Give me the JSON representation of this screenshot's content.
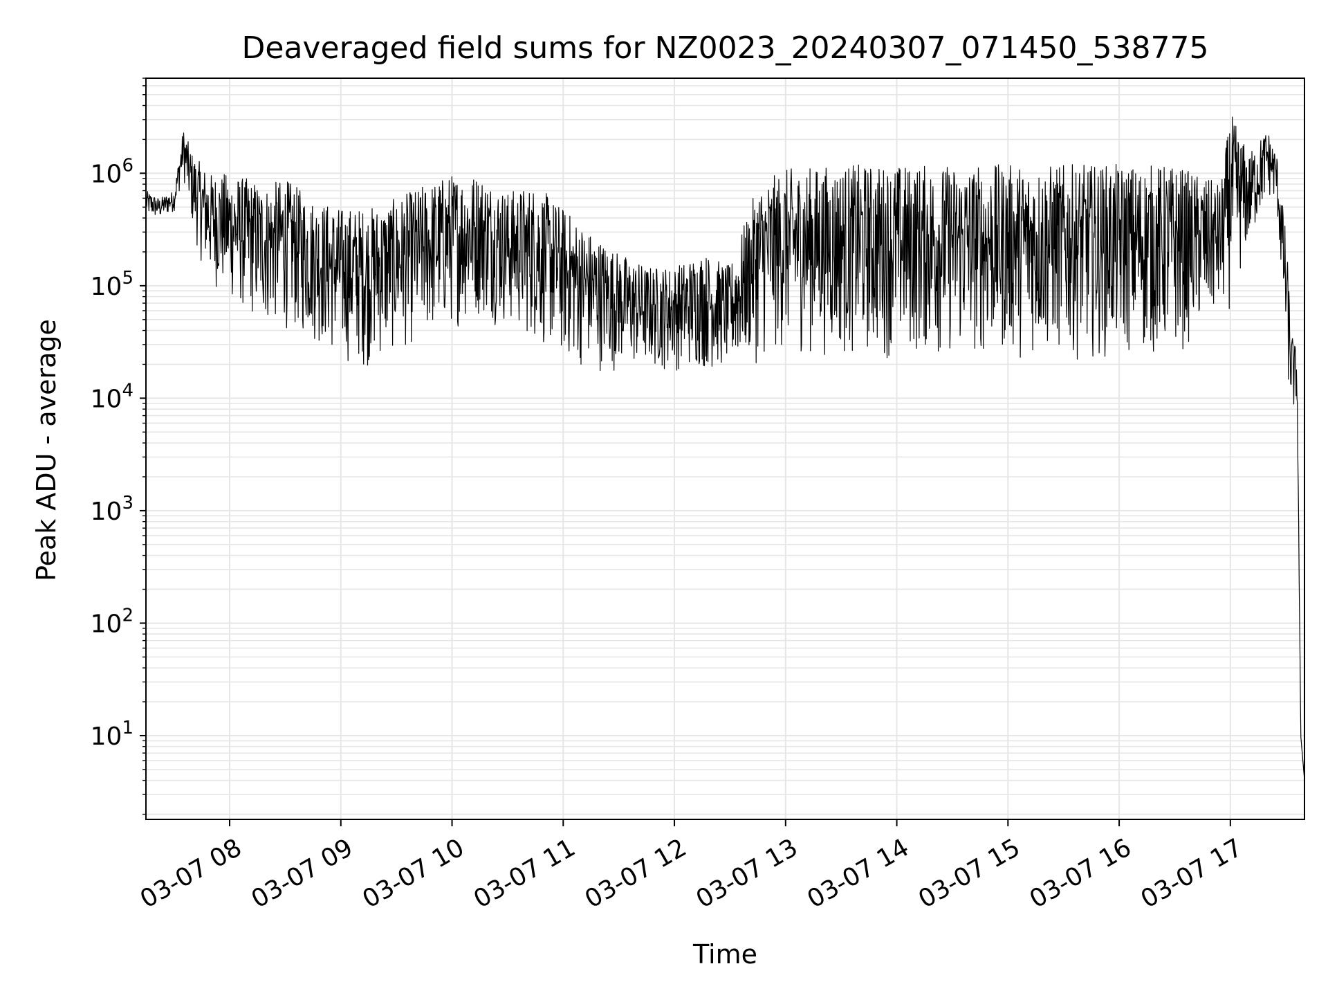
{
  "chart_data": {
    "type": "line",
    "title": "Deaveraged field sums for NZ0023_20240307_071450_538775",
    "xlabel": "Time",
    "ylabel": "Peak ADU - average",
    "yscale": "log",
    "ylim": [
      1.8,
      7000000
    ],
    "xlim": [
      "2024-03-07 07:14:50",
      "2024-03-07 17:40:00"
    ],
    "grid": true,
    "x_tick_labels": [
      "03-07 08",
      "03-07 09",
      "03-07 10",
      "03-07 11",
      "03-07 12",
      "03-07 13",
      "03-07 14",
      "03-07 15",
      "03-07 16",
      "03-07 17"
    ],
    "y_tick_labels": [
      {
        "base": "10",
        "exp": "1"
      },
      {
        "base": "10",
        "exp": "2"
      },
      {
        "base": "10",
        "exp": "3"
      },
      {
        "base": "10",
        "exp": "4"
      },
      {
        "base": "10",
        "exp": "5"
      },
      {
        "base": "10",
        "exp": "6"
      }
    ],
    "line_color": "#000000",
    "grid_color": "#e6e6e6",
    "series": [
      {
        "x": [
          "2024-03-07 07:15",
          "2024-03-07 07:22",
          "2024-03-07 07:30",
          "2024-03-07 07:35",
          "2024-03-07 07:40",
          "2024-03-07 07:45",
          "2024-03-07 07:50",
          "2024-03-07 08:00",
          "2024-03-07 08:10",
          "2024-03-07 08:20",
          "2024-03-07 08:30",
          "2024-03-07 08:45",
          "2024-03-07 09:00",
          "2024-03-07 09:15",
          "2024-03-07 09:30",
          "2024-03-07 09:45",
          "2024-03-07 10:00",
          "2024-03-07 10:15",
          "2024-03-07 10:30",
          "2024-03-07 10:45",
          "2024-03-07 11:00",
          "2024-03-07 11:15",
          "2024-03-07 11:30",
          "2024-03-07 11:45",
          "2024-03-07 12:00",
          "2024-03-07 12:15",
          "2024-03-07 12:30",
          "2024-03-07 12:45",
          "2024-03-07 13:00",
          "2024-03-07 13:30",
          "2024-03-07 14:00",
          "2024-03-07 14:30",
          "2024-03-07 15:00",
          "2024-03-07 15:30",
          "2024-03-07 16:00",
          "2024-03-07 16:30",
          "2024-03-07 16:55",
          "2024-03-07 17:00",
          "2024-03-07 17:10",
          "2024-03-07 17:20",
          "2024-03-07 17:25",
          "2024-03-07 17:30",
          "2024-03-07 17:33",
          "2024-03-07 17:36",
          "2024-03-07 17:38",
          "2024-03-07 17:40"
        ],
        "values": [
          500000,
          450000,
          550000,
          1200000,
          700000,
          500000,
          400000,
          250000,
          200000,
          150000,
          180000,
          100000,
          60000,
          40000,
          80000,
          120000,
          150000,
          200000,
          160000,
          100000,
          50000,
          30000,
          25000,
          25000,
          25000,
          25000,
          25000,
          30000,
          400000,
          300000,
          350000,
          300000,
          300000,
          300000,
          300000,
          300000,
          200000,
          250000,
          500000,
          1000000,
          800000,
          100000,
          20000,
          15000,
          10,
          4
        ],
        "band_low": [
          400000,
          380000,
          450000,
          900000,
          300000,
          150000,
          100000,
          70000,
          50000,
          40000,
          40000,
          30000,
          20000,
          18000,
          25000,
          30000,
          40000,
          50000,
          40000,
          30000,
          20000,
          17000,
          17000,
          17000,
          17000,
          17000,
          17000,
          20000,
          25000,
          22000,
          22000,
          22000,
          22000,
          22000,
          22000,
          22000,
          50000,
          60000,
          200000,
          600000,
          500000,
          20000,
          6000,
          8000,
          10,
          4
        ],
        "band_high": [
          700000,
          600000,
          700000,
          2500000,
          1500000,
          1200000,
          1000000,
          1000000,
          900000,
          800000,
          900000,
          600000,
          500000,
          500000,
          600000,
          800000,
          1000000,
          1000000,
          700000,
          800000,
          500000,
          300000,
          200000,
          150000,
          150000,
          200000,
          150000,
          800000,
          1100000,
          1200000,
          1200000,
          1200000,
          1200000,
          1200000,
          1200000,
          1200000,
          800000,
          3500000,
          1500000,
          2500000,
          1500000,
          300000,
          40000,
          25000,
          10,
          4
        ]
      }
    ]
  }
}
